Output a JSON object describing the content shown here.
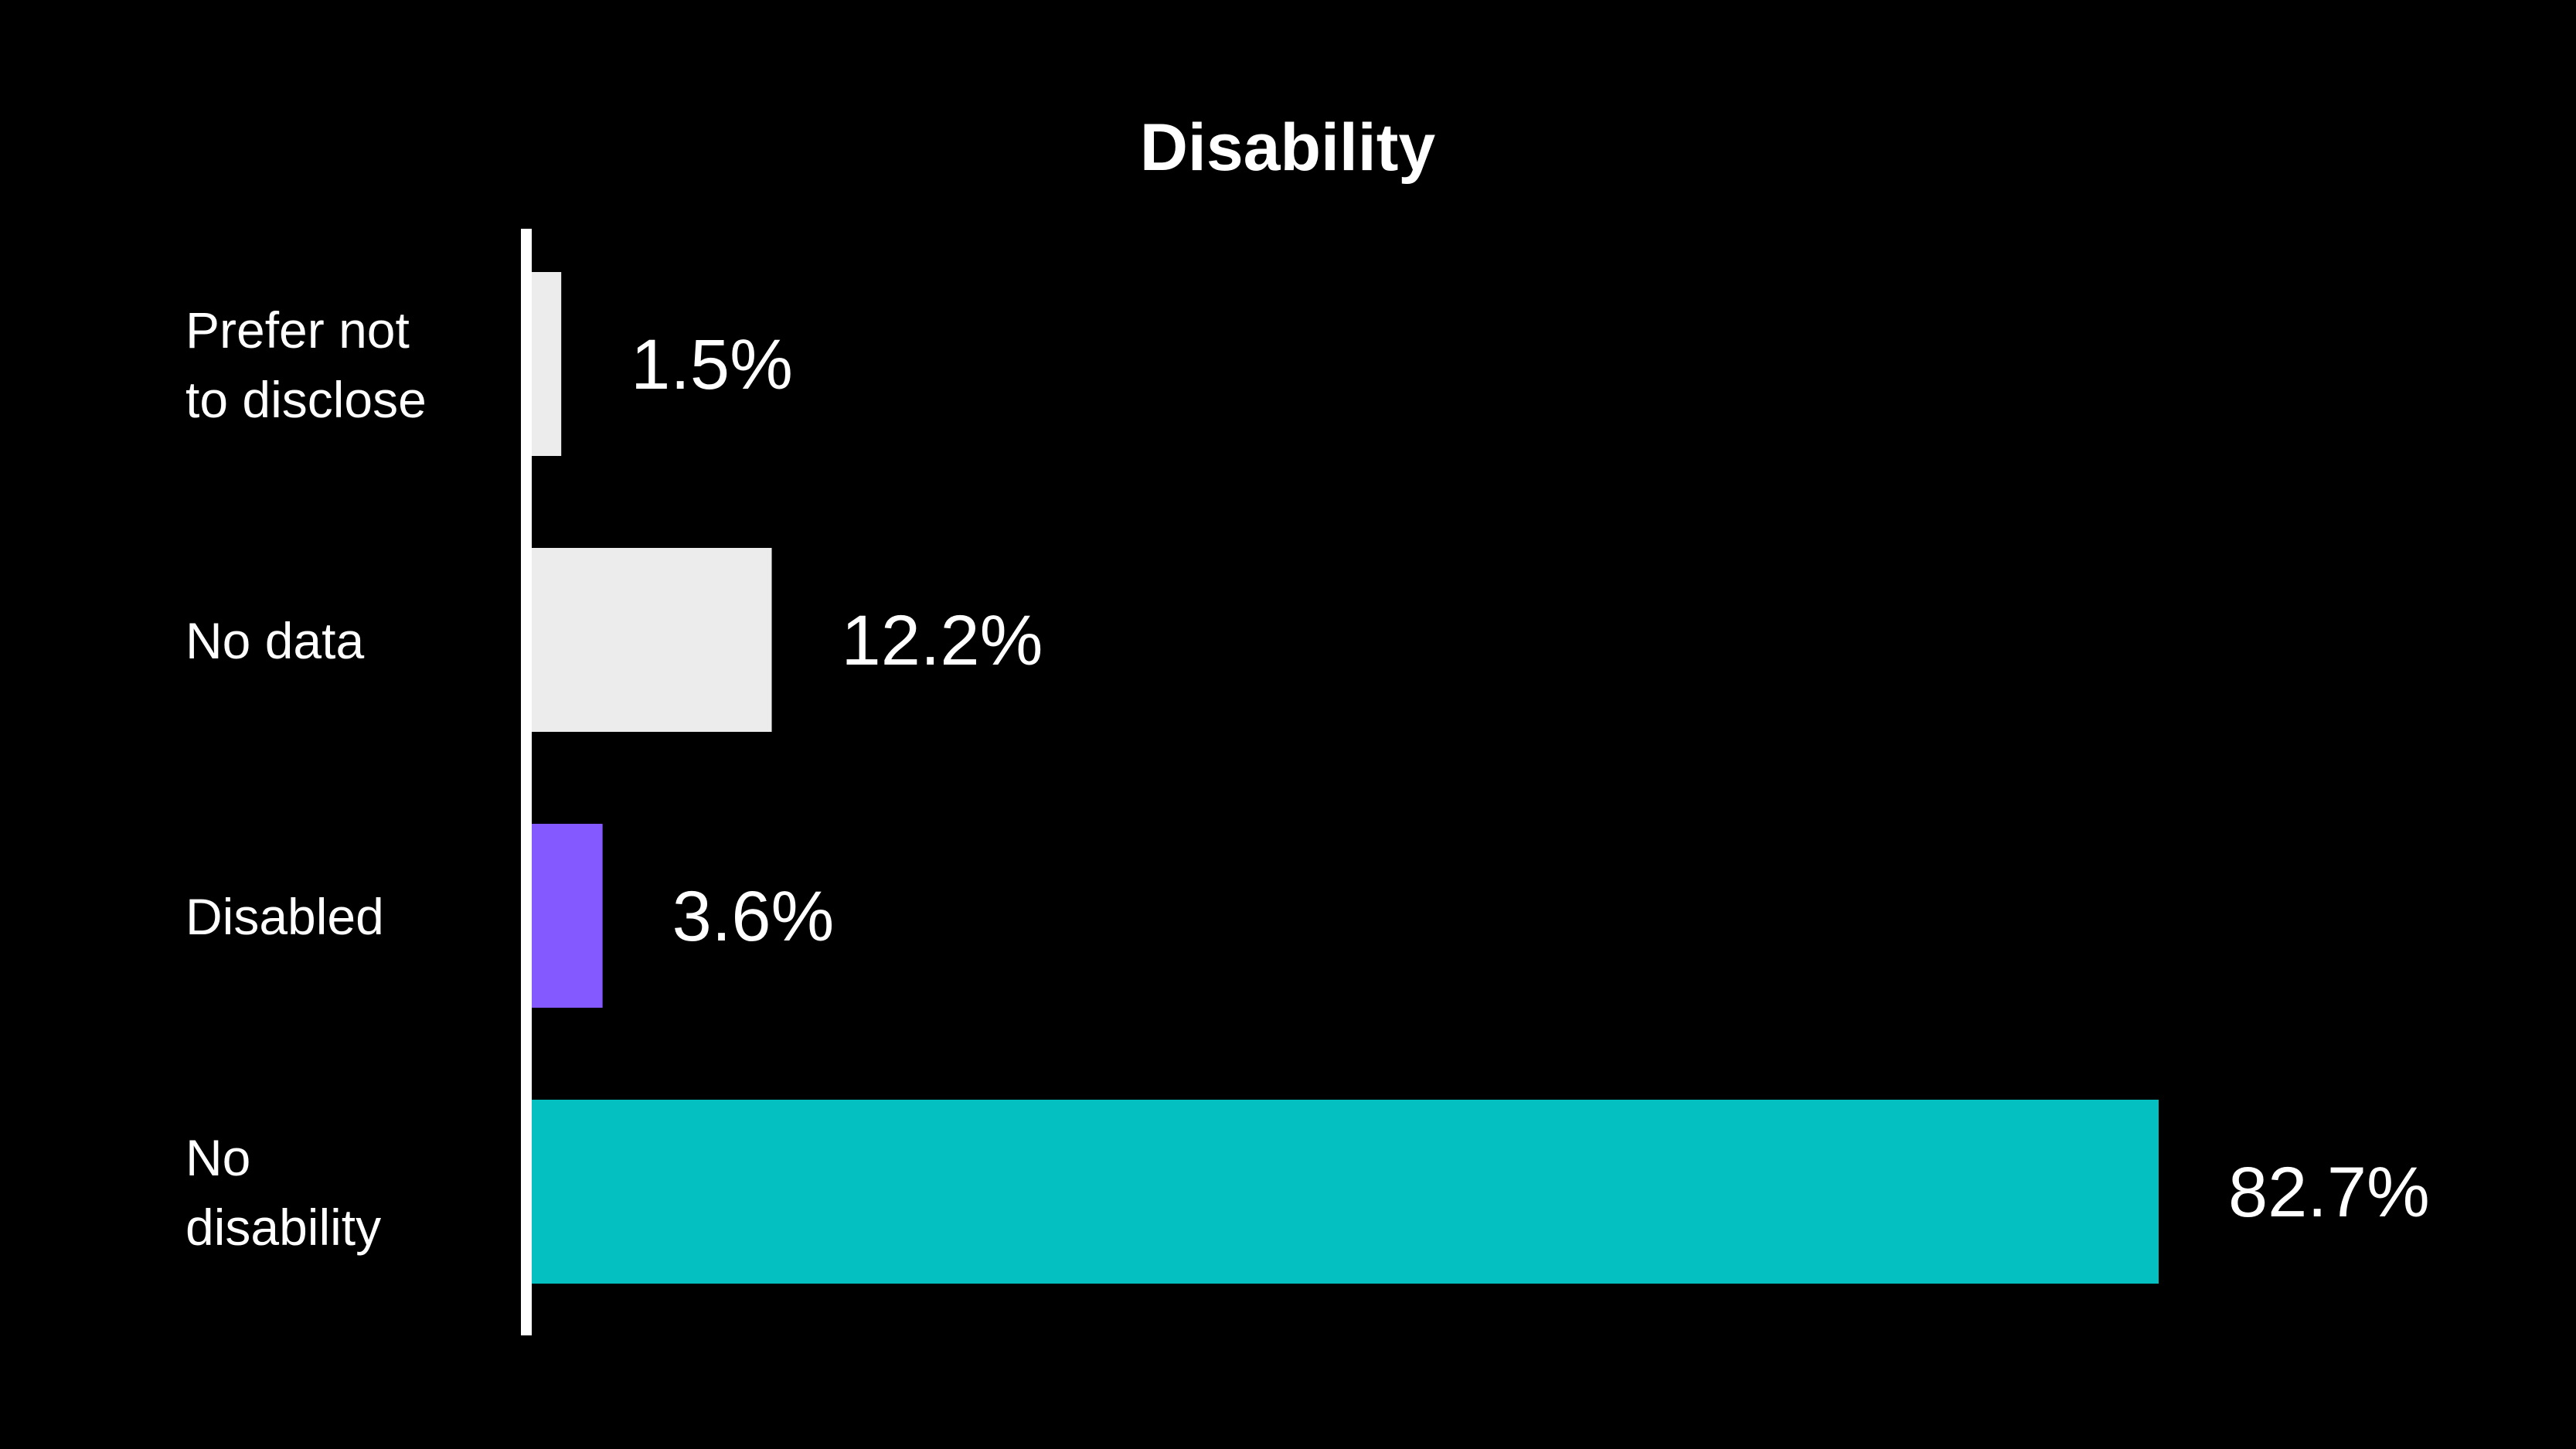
{
  "chart_data": {
    "type": "bar",
    "orientation": "horizontal",
    "title": "Disability",
    "xlabel": "",
    "ylabel": "",
    "xlim": [
      0,
      82.7
    ],
    "categories": [
      {
        "label_lines": [
          "Prefer not",
          "to disclose"
        ],
        "value": 1.5,
        "value_label": "1.5%",
        "color": "#ececec"
      },
      {
        "label_lines": [
          "No data"
        ],
        "value": 12.2,
        "value_label": "12.2%",
        "color": "#ececec"
      },
      {
        "label_lines": [
          "Disabled"
        ],
        "value": 3.6,
        "value_label": "3.6%",
        "color": "#8459ff"
      },
      {
        "label_lines": [
          "No",
          "disability"
        ],
        "value": 82.7,
        "value_label": "82.7%",
        "color": "#05c0c1"
      }
    ],
    "axis_color": "#ffffff",
    "background": "#000000",
    "grid": false,
    "legend": "none"
  }
}
